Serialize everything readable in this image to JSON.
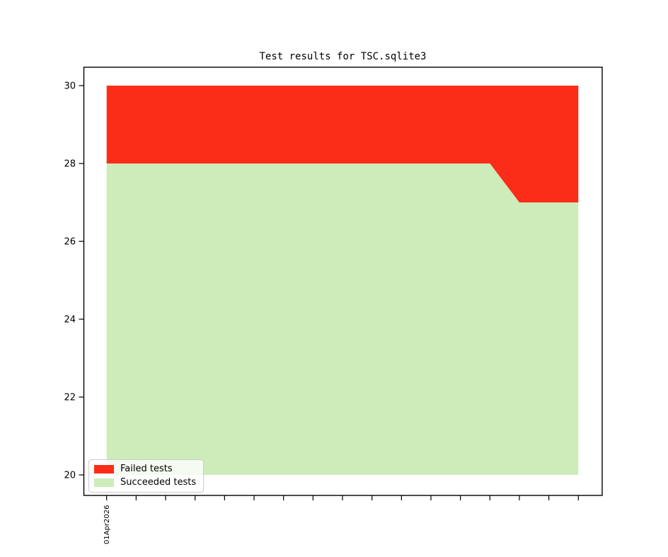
{
  "figure": {
    "background_color": "#ffffff",
    "axis_color": "#000000"
  },
  "chart_data": {
    "type": "area",
    "stacked": true,
    "title": "Test results for TSC.sqlite3",
    "grid": false,
    "x_axis": {
      "tick_count": 17,
      "labels": [
        {
          "index": 0,
          "text": "01Apr2026",
          "rotation_deg": 90
        }
      ]
    },
    "y_axis": {
      "ticks": [
        20,
        22,
        24,
        26,
        28,
        30
      ],
      "range": [
        20,
        30
      ],
      "baseline": 20
    },
    "series": [
      {
        "name": "Succeeded tests",
        "color": "#cdecba",
        "values": [
          28,
          28,
          28,
          28,
          28,
          28,
          28,
          28,
          28,
          28,
          28,
          28,
          28,
          28,
          27,
          27,
          27
        ]
      },
      {
        "name": "Failed tests",
        "color": "#fb2d18",
        "values": [
          2,
          2,
          2,
          2,
          2,
          2,
          2,
          2,
          2,
          2,
          2,
          2,
          2,
          2,
          3,
          3,
          3
        ]
      }
    ]
  },
  "legend": {
    "position": "lower-left",
    "border_color": "#cccccc",
    "items": [
      {
        "label": "Failed tests",
        "color": "#fb2d18"
      },
      {
        "label": "Succeeded tests",
        "color": "#cdecba"
      }
    ]
  }
}
